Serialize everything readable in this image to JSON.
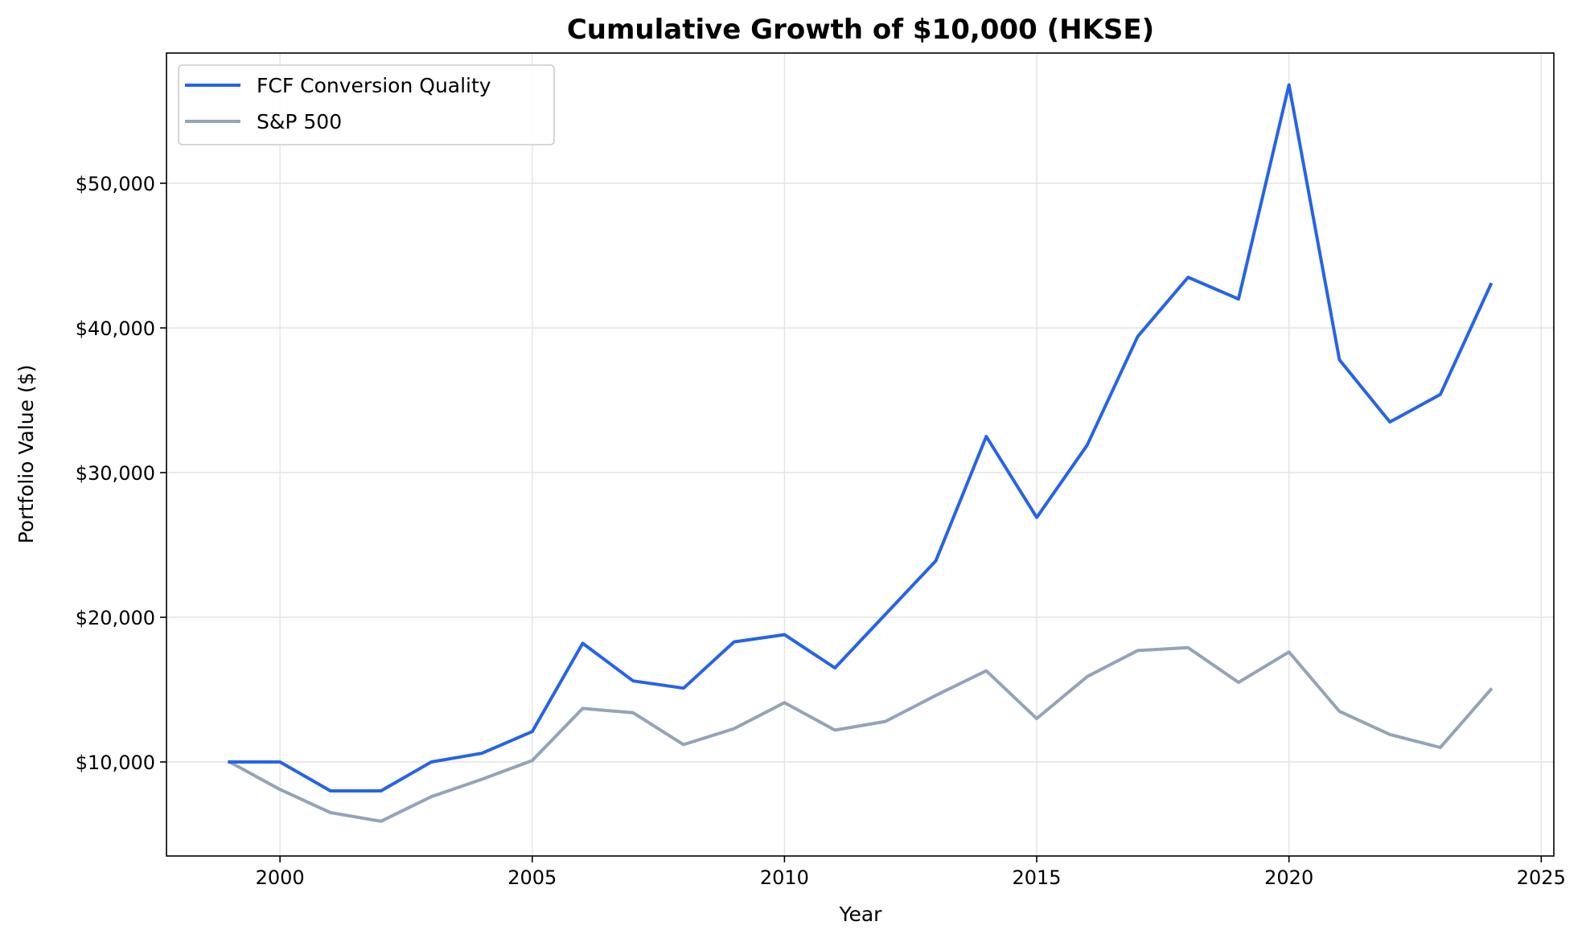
{
  "chart_data": {
    "type": "line",
    "title": "Cumulative Growth of $10,000 (HKSE)",
    "xlabel": "Year",
    "ylabel": "Portfolio Value ($)",
    "xlim": [
      1997.75,
      2025.25
    ],
    "ylim": [
      3500,
      59000
    ],
    "x_ticks": [
      2000,
      2005,
      2010,
      2015,
      2020,
      2025
    ],
    "x_tick_labels": [
      "2000",
      "2005",
      "2010",
      "2015",
      "2020",
      "2025"
    ],
    "y_ticks": [
      10000,
      20000,
      30000,
      40000,
      50000
    ],
    "y_tick_labels": [
      "$10,000",
      "$20,000",
      "$30,000",
      "$40,000",
      "$50,000"
    ],
    "grid": true,
    "legend_position": "upper-left",
    "x": [
      1999,
      2000,
      2001,
      2002,
      2003,
      2004,
      2005,
      2006,
      2007,
      2008,
      2009,
      2010,
      2011,
      2012,
      2013,
      2014,
      2015,
      2016,
      2017,
      2018,
      2019,
      2020,
      2021,
      2022,
      2023,
      2024
    ],
    "series": [
      {
        "name": "FCF Conversion Quality",
        "color": "#2563eb",
        "values": [
          10000,
          10000,
          8000,
          8000,
          10000,
          10600,
          12100,
          18200,
          15600,
          15100,
          18300,
          18800,
          16500,
          20200,
          23900,
          32500,
          26900,
          31900,
          39400,
          43500,
          42000,
          56800,
          37800,
          33500,
          35400,
          43000
        ]
      },
      {
        "name": "S&P 500",
        "color": "#94a3b8",
        "values": [
          10000,
          8100,
          6500,
          5900,
          7600,
          8800,
          10100,
          13700,
          13400,
          11200,
          12300,
          14100,
          12200,
          12800,
          14600,
          16300,
          13000,
          15900,
          17700,
          17900,
          15500,
          17600,
          13500,
          11900,
          11000,
          15000
        ]
      }
    ]
  }
}
